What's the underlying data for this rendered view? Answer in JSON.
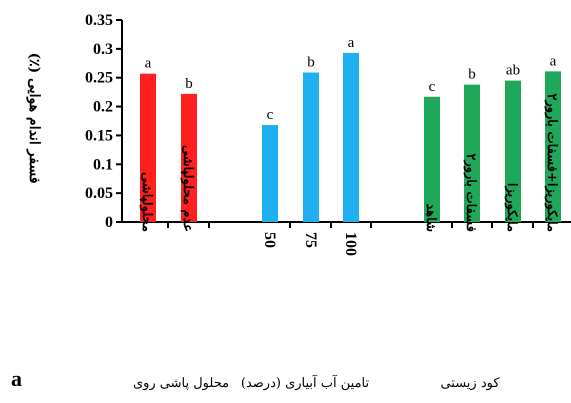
{
  "chart_data": {
    "type": "bar",
    "panel_label": "a",
    "ylabel": "فسفر اندام هوایی (٪)",
    "ylim": [
      0,
      0.35
    ],
    "yticks": [
      "0",
      "0.05",
      "0.1",
      "0.15",
      "0.2",
      "0.25",
      "0.3",
      "0.35"
    ],
    "groups": [
      {
        "name": "محلول پاشی روی",
        "color": "#ff1f1f",
        "bars": [
          {
            "category": "محلولپاشی",
            "value": 0.257,
            "letter": "a"
          },
          {
            "category": "عدم محلولپاشی",
            "value": 0.222,
            "letter": "b"
          }
        ]
      },
      {
        "name": "تامین آب آبیاری (درصد)",
        "color": "#1fb0f0",
        "bars": [
          {
            "category": "50",
            "value": 0.168,
            "letter": "c"
          },
          {
            "category": "75",
            "value": 0.259,
            "letter": "b"
          },
          {
            "category": "100",
            "value": 0.293,
            "letter": "a"
          }
        ]
      },
      {
        "name": "کود زیستی",
        "color": "#1fa85a",
        "bars": [
          {
            "category": "شاهد",
            "value": 0.217,
            "letter": "c"
          },
          {
            "category": "فسفات بارور۲",
            "value": 0.238,
            "letter": "b"
          },
          {
            "category": "مایکوریزا",
            "value": 0.245,
            "letter": "ab"
          },
          {
            "category": "مایکوریزا+فسفات بارور۲",
            "value": 0.261,
            "letter": "a"
          }
        ]
      }
    ]
  }
}
